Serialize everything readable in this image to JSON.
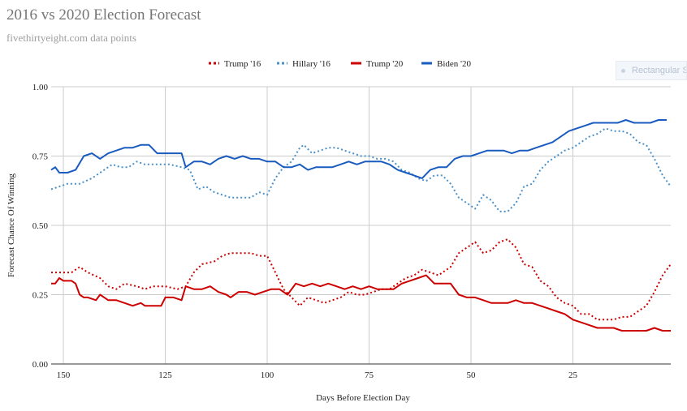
{
  "chart_data": {
    "type": "line",
    "title": "2016 vs 2020 Election Forecast",
    "subtitle": "fivethirtyeight.com data points",
    "xlabel": "Days Before Election Day",
    "ylabel": "Forecast Chance Of Winning",
    "xlim": [
      153,
      1
    ],
    "ylim": [
      0,
      1
    ],
    "xticks": [
      "150",
      "125",
      "100",
      "75",
      "50",
      "25"
    ],
    "xtick_values": [
      150,
      125,
      100,
      75,
      50,
      25
    ],
    "yticks": [
      "0.00",
      "0.25",
      "0.50",
      "0.75",
      "1.00"
    ],
    "ytick_values": [
      0,
      0.25,
      0.5,
      0.75,
      1.0
    ],
    "grid": true,
    "legend_position": "top",
    "series": [
      {
        "name": "Trump '16",
        "color": "#cc0000",
        "style": "dotted",
        "points": [
          [
            153,
            0.33
          ],
          [
            148,
            0.33
          ],
          [
            146,
            0.35
          ],
          [
            144,
            0.33
          ],
          [
            141,
            0.31
          ],
          [
            139,
            0.28
          ],
          [
            137,
            0.27
          ],
          [
            135,
            0.29
          ],
          [
            132,
            0.28
          ],
          [
            130,
            0.27
          ],
          [
            128,
            0.28
          ],
          [
            125,
            0.28
          ],
          [
            122,
            0.27
          ],
          [
            120,
            0.28
          ],
          [
            118,
            0.33
          ],
          [
            116,
            0.36
          ],
          [
            113,
            0.37
          ],
          [
            111,
            0.39
          ],
          [
            109,
            0.4
          ],
          [
            106,
            0.4
          ],
          [
            104,
            0.4
          ],
          [
            102,
            0.39
          ],
          [
            100,
            0.39
          ],
          [
            98,
            0.33
          ],
          [
            96,
            0.27
          ],
          [
            94,
            0.24
          ],
          [
            92,
            0.21
          ],
          [
            90,
            0.24
          ],
          [
            88,
            0.23
          ],
          [
            86,
            0.22
          ],
          [
            84,
            0.23
          ],
          [
            82,
            0.24
          ],
          [
            80,
            0.26
          ],
          [
            78,
            0.25
          ],
          [
            76,
            0.25
          ],
          [
            74,
            0.26
          ],
          [
            72,
            0.27
          ],
          [
            70,
            0.27
          ],
          [
            68,
            0.29
          ],
          [
            66,
            0.31
          ],
          [
            64,
            0.32
          ],
          [
            62,
            0.34
          ],
          [
            60,
            0.33
          ],
          [
            58,
            0.32
          ],
          [
            55,
            0.35
          ],
          [
            53,
            0.4
          ],
          [
            51,
            0.42
          ],
          [
            49,
            0.44
          ],
          [
            47,
            0.4
          ],
          [
            45,
            0.41
          ],
          [
            43,
            0.44
          ],
          [
            41,
            0.45
          ],
          [
            39,
            0.42
          ],
          [
            37,
            0.36
          ],
          [
            35,
            0.35
          ],
          [
            33,
            0.3
          ],
          [
            31,
            0.28
          ],
          [
            29,
            0.24
          ],
          [
            27,
            0.22
          ],
          [
            25,
            0.21
          ],
          [
            23,
            0.18
          ],
          [
            21,
            0.18
          ],
          [
            19,
            0.16
          ],
          [
            17,
            0.16
          ],
          [
            15,
            0.16
          ],
          [
            13,
            0.17
          ],
          [
            11,
            0.17
          ],
          [
            9,
            0.19
          ],
          [
            7,
            0.21
          ],
          [
            5,
            0.26
          ],
          [
            3,
            0.32
          ],
          [
            1,
            0.36
          ]
        ]
      },
      {
        "name": "Hillary '16",
        "color": "#4a90c8",
        "style": "dotted",
        "points": [
          [
            153,
            0.63
          ],
          [
            149,
            0.65
          ],
          [
            146,
            0.65
          ],
          [
            143,
            0.67
          ],
          [
            140,
            0.7
          ],
          [
            138,
            0.72
          ],
          [
            136,
            0.71
          ],
          [
            134,
            0.71
          ],
          [
            132,
            0.73
          ],
          [
            130,
            0.72
          ],
          [
            127,
            0.72
          ],
          [
            124,
            0.72
          ],
          [
            121,
            0.71
          ],
          [
            119,
            0.7
          ],
          [
            117,
            0.63
          ],
          [
            115,
            0.64
          ],
          [
            113,
            0.62
          ],
          [
            111,
            0.61
          ],
          [
            109,
            0.6
          ],
          [
            106,
            0.6
          ],
          [
            104,
            0.6
          ],
          [
            102,
            0.62
          ],
          [
            100,
            0.61
          ],
          [
            98,
            0.67
          ],
          [
            96,
            0.71
          ],
          [
            94,
            0.73
          ],
          [
            92,
            0.78
          ],
          [
            91,
            0.79
          ],
          [
            89,
            0.76
          ],
          [
            87,
            0.77
          ],
          [
            85,
            0.78
          ],
          [
            83,
            0.78
          ],
          [
            81,
            0.77
          ],
          [
            79,
            0.76
          ],
          [
            77,
            0.75
          ],
          [
            75,
            0.75
          ],
          [
            73,
            0.74
          ],
          [
            71,
            0.74
          ],
          [
            69,
            0.73
          ],
          [
            67,
            0.7
          ],
          [
            65,
            0.69
          ],
          [
            63,
            0.67
          ],
          [
            61,
            0.66
          ],
          [
            59,
            0.68
          ],
          [
            57,
            0.68
          ],
          [
            55,
            0.65
          ],
          [
            53,
            0.6
          ],
          [
            51,
            0.58
          ],
          [
            49,
            0.56
          ],
          [
            47,
            0.61
          ],
          [
            45,
            0.59
          ],
          [
            43,
            0.55
          ],
          [
            41,
            0.55
          ],
          [
            39,
            0.58
          ],
          [
            37,
            0.64
          ],
          [
            35,
            0.65
          ],
          [
            33,
            0.7
          ],
          [
            31,
            0.73
          ],
          [
            29,
            0.75
          ],
          [
            27,
            0.77
          ],
          [
            25,
            0.78
          ],
          [
            23,
            0.8
          ],
          [
            21,
            0.82
          ],
          [
            19,
            0.83
          ],
          [
            17,
            0.85
          ],
          [
            15,
            0.84
          ],
          [
            13,
            0.84
          ],
          [
            11,
            0.83
          ],
          [
            9,
            0.8
          ],
          [
            7,
            0.79
          ],
          [
            5,
            0.74
          ],
          [
            3,
            0.68
          ],
          [
            1,
            0.64
          ]
        ]
      },
      {
        "name": "Trump '20",
        "color": "#cc0000",
        "style": "solid",
        "points": [
          [
            153,
            0.29
          ],
          [
            152,
            0.29
          ],
          [
            151,
            0.31
          ],
          [
            150,
            0.3
          ],
          [
            148,
            0.3
          ],
          [
            147,
            0.29
          ],
          [
            146,
            0.25
          ],
          [
            145,
            0.24
          ],
          [
            144,
            0.24
          ],
          [
            142,
            0.23
          ],
          [
            141,
            0.25
          ],
          [
            139,
            0.23
          ],
          [
            137,
            0.23
          ],
          [
            135,
            0.22
          ],
          [
            133,
            0.21
          ],
          [
            131,
            0.22
          ],
          [
            130,
            0.21
          ],
          [
            128,
            0.21
          ],
          [
            126,
            0.21
          ],
          [
            125,
            0.24
          ],
          [
            123,
            0.24
          ],
          [
            121,
            0.23
          ],
          [
            120,
            0.28
          ],
          [
            118,
            0.27
          ],
          [
            116,
            0.27
          ],
          [
            114,
            0.28
          ],
          [
            112,
            0.26
          ],
          [
            110,
            0.25
          ],
          [
            109,
            0.24
          ],
          [
            107,
            0.26
          ],
          [
            105,
            0.26
          ],
          [
            103,
            0.25
          ],
          [
            101,
            0.26
          ],
          [
            99,
            0.27
          ],
          [
            97,
            0.27
          ],
          [
            95,
            0.25
          ],
          [
            93,
            0.29
          ],
          [
            91,
            0.28
          ],
          [
            89,
            0.29
          ],
          [
            87,
            0.28
          ],
          [
            85,
            0.29
          ],
          [
            83,
            0.28
          ],
          [
            81,
            0.27
          ],
          [
            79,
            0.28
          ],
          [
            77,
            0.27
          ],
          [
            75,
            0.28
          ],
          [
            73,
            0.27
          ],
          [
            71,
            0.27
          ],
          [
            69,
            0.27
          ],
          [
            67,
            0.29
          ],
          [
            65,
            0.3
          ],
          [
            63,
            0.31
          ],
          [
            61,
            0.32
          ],
          [
            59,
            0.29
          ],
          [
            57,
            0.29
          ],
          [
            55,
            0.29
          ],
          [
            53,
            0.25
          ],
          [
            51,
            0.24
          ],
          [
            49,
            0.24
          ],
          [
            47,
            0.23
          ],
          [
            45,
            0.22
          ],
          [
            43,
            0.22
          ],
          [
            41,
            0.22
          ],
          [
            39,
            0.23
          ],
          [
            37,
            0.22
          ],
          [
            35,
            0.22
          ],
          [
            33,
            0.21
          ],
          [
            31,
            0.2
          ],
          [
            29,
            0.19
          ],
          [
            27,
            0.18
          ],
          [
            25,
            0.16
          ],
          [
            23,
            0.15
          ],
          [
            21,
            0.14
          ],
          [
            19,
            0.13
          ],
          [
            17,
            0.13
          ],
          [
            15,
            0.13
          ],
          [
            13,
            0.12
          ],
          [
            11,
            0.12
          ],
          [
            9,
            0.12
          ],
          [
            7,
            0.12
          ],
          [
            5,
            0.13
          ],
          [
            3,
            0.12
          ],
          [
            1,
            0.12
          ]
        ]
      },
      {
        "name": "Biden '20",
        "color": "#1a5bbf",
        "style": "solid",
        "points": [
          [
            153,
            0.7
          ],
          [
            152,
            0.71
          ],
          [
            151,
            0.69
          ],
          [
            149,
            0.69
          ],
          [
            147,
            0.7
          ],
          [
            145,
            0.75
          ],
          [
            143,
            0.76
          ],
          [
            141,
            0.74
          ],
          [
            139,
            0.76
          ],
          [
            137,
            0.77
          ],
          [
            135,
            0.78
          ],
          [
            133,
            0.78
          ],
          [
            131,
            0.79
          ],
          [
            129,
            0.79
          ],
          [
            127,
            0.76
          ],
          [
            125,
            0.76
          ],
          [
            123,
            0.76
          ],
          [
            121,
            0.76
          ],
          [
            120,
            0.71
          ],
          [
            118,
            0.73
          ],
          [
            116,
            0.73
          ],
          [
            114,
            0.72
          ],
          [
            112,
            0.74
          ],
          [
            110,
            0.75
          ],
          [
            108,
            0.74
          ],
          [
            106,
            0.75
          ],
          [
            104,
            0.74
          ],
          [
            102,
            0.74
          ],
          [
            100,
            0.73
          ],
          [
            98,
            0.73
          ],
          [
            96,
            0.71
          ],
          [
            94,
            0.71
          ],
          [
            92,
            0.72
          ],
          [
            90,
            0.7
          ],
          [
            88,
            0.71
          ],
          [
            86,
            0.71
          ],
          [
            84,
            0.71
          ],
          [
            82,
            0.72
          ],
          [
            80,
            0.73
          ],
          [
            78,
            0.72
          ],
          [
            76,
            0.73
          ],
          [
            74,
            0.73
          ],
          [
            72,
            0.73
          ],
          [
            70,
            0.72
          ],
          [
            68,
            0.7
          ],
          [
            66,
            0.69
          ],
          [
            64,
            0.68
          ],
          [
            62,
            0.67
          ],
          [
            60,
            0.7
          ],
          [
            58,
            0.71
          ],
          [
            56,
            0.71
          ],
          [
            54,
            0.74
          ],
          [
            52,
            0.75
          ],
          [
            50,
            0.75
          ],
          [
            48,
            0.76
          ],
          [
            46,
            0.77
          ],
          [
            44,
            0.77
          ],
          [
            42,
            0.77
          ],
          [
            40,
            0.76
          ],
          [
            38,
            0.77
          ],
          [
            36,
            0.77
          ],
          [
            34,
            0.78
          ],
          [
            32,
            0.79
          ],
          [
            30,
            0.8
          ],
          [
            28,
            0.82
          ],
          [
            26,
            0.84
          ],
          [
            24,
            0.85
          ],
          [
            22,
            0.86
          ],
          [
            20,
            0.87
          ],
          [
            18,
            0.87
          ],
          [
            16,
            0.87
          ],
          [
            14,
            0.87
          ],
          [
            12,
            0.88
          ],
          [
            10,
            0.87
          ],
          [
            8,
            0.87
          ],
          [
            6,
            0.87
          ],
          [
            4,
            0.88
          ],
          [
            2,
            0.88
          ]
        ]
      }
    ]
  },
  "overlay": {
    "label": "Rectangular Snip"
  }
}
